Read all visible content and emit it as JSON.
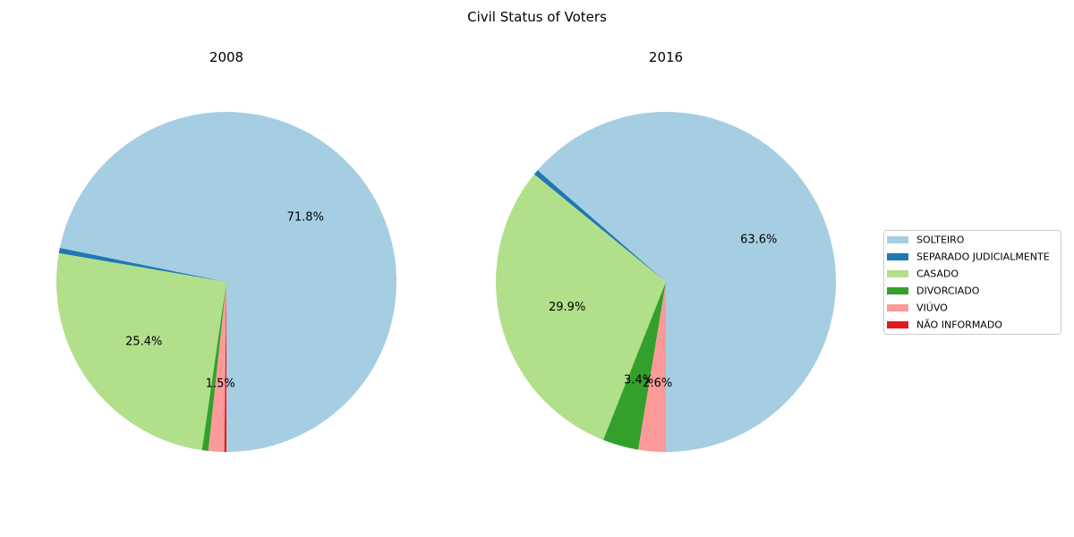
{
  "chart_data": {
    "type": "pie",
    "title": "Civil Status of Voters",
    "legend_position": "right",
    "categories": [
      "SOLTEIRO",
      "SEPARADO JUDICIALMENTE",
      "CASADO",
      "DIVORCIADO",
      "VIÚVO",
      "NÃO INFORMADO"
    ],
    "colors": [
      "#a6cee3",
      "#1f78b4",
      "#b2df8a",
      "#33a02c",
      "#fb9a99",
      "#e31a1c"
    ],
    "pies": [
      {
        "title": "2008",
        "values": [
          71.8,
          0.5,
          25.4,
          0.6,
          1.5,
          0.2
        ],
        "labels": [
          "71.8%",
          "",
          "25.4%",
          "",
          "1.5%",
          ""
        ]
      },
      {
        "title": "2016",
        "values": [
          63.6,
          0.5,
          29.9,
          3.4,
          2.6,
          0.0
        ],
        "labels": [
          "63.6%",
          "",
          "29.9%",
          "3.4%",
          "2.6%",
          ""
        ]
      }
    ]
  }
}
